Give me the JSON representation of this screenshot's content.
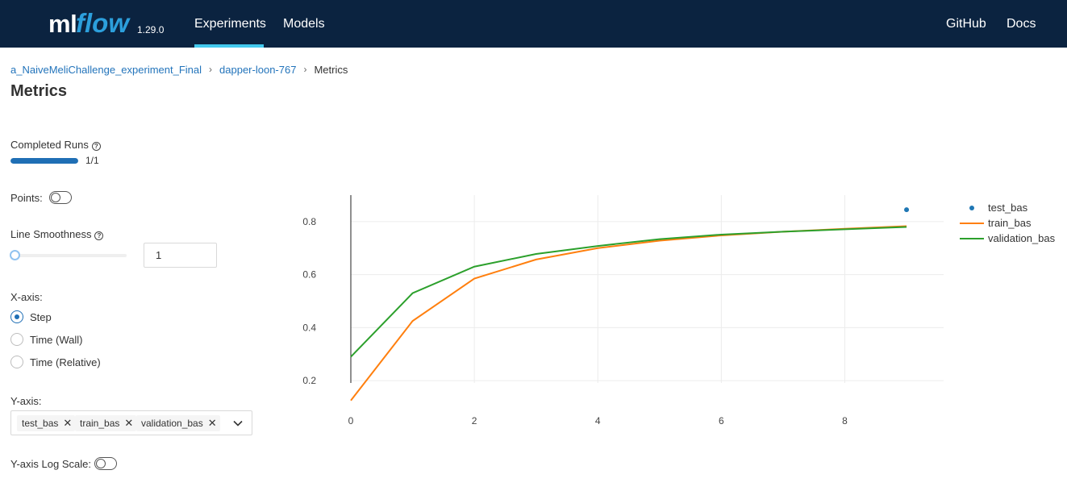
{
  "header": {
    "logo_ml": "ml",
    "logo_flow": "flow",
    "version": "1.29.0",
    "nav": {
      "experiments": "Experiments",
      "models": "Models",
      "github": "GitHub",
      "docs": "Docs"
    },
    "active_tab": "Experiments",
    "background": "#0b2340",
    "accent": "#43c9ed"
  },
  "breadcrumb": {
    "experiment": "a_NaiveMeliChallenge_experiment_Final",
    "run": "dapper-loon-767",
    "current": "Metrics",
    "separator": "›"
  },
  "page_title": "Metrics",
  "controls": {
    "completed_runs_label": "Completed Runs",
    "completed_runs_text": "1/1",
    "completed_runs_fraction": 1.0,
    "points_label": "Points:",
    "points_enabled": false,
    "line_smoothness_label": "Line Smoothness",
    "line_smoothness_value": "1",
    "xaxis_label": "X-axis:",
    "xaxis_options": [
      "Step",
      "Time (Wall)",
      "Time (Relative)"
    ],
    "xaxis_selected": "Step",
    "yaxis_label": "Y-axis:",
    "yaxis_tags": [
      "test_bas",
      "train_bas",
      "validation_bas"
    ],
    "yaxis_log_label": "Y-axis Log Scale:",
    "yaxis_log_enabled": false,
    "help_icon": "question-circle-icon"
  },
  "chart_data": {
    "type": "line",
    "xlim": [
      0,
      9.6
    ],
    "ylim": [
      0.1,
      0.9
    ],
    "xticks": [
      0,
      2,
      4,
      6,
      8
    ],
    "yticks": [
      0.2,
      0.4,
      0.6,
      0.8
    ],
    "grid": true,
    "legend_position": "right",
    "series": [
      {
        "name": "test_bas",
        "mode": "markers",
        "color": "#1f77b4",
        "x": [
          9
        ],
        "y": [
          0.845
        ]
      },
      {
        "name": "train_bas",
        "mode": "lines",
        "color": "#ff7f0e",
        "x": [
          0,
          1,
          2,
          3,
          4,
          5,
          6,
          7,
          8,
          9
        ],
        "y": [
          0.125,
          0.425,
          0.585,
          0.657,
          0.7,
          0.728,
          0.748,
          0.762,
          0.773,
          0.783
        ]
      },
      {
        "name": "validation_bas",
        "mode": "lines",
        "color": "#2ca02c",
        "x": [
          0,
          1,
          2,
          3,
          4,
          5,
          6,
          7,
          8,
          9
        ],
        "y": [
          0.29,
          0.53,
          0.63,
          0.678,
          0.708,
          0.734,
          0.751,
          0.762,
          0.771,
          0.78
        ]
      }
    ]
  }
}
